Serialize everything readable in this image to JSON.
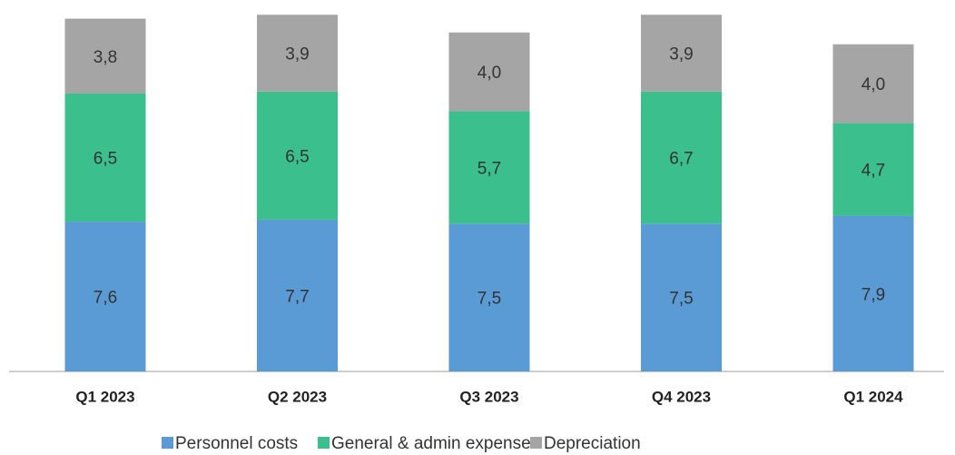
{
  "chart_data": {
    "type": "stacked_bar",
    "categories": [
      "Q1 2023",
      "Q2 2023",
      "Q3 2023",
      "Q4 2023",
      "Q1 2024"
    ],
    "series": [
      {
        "name": "Personnel costs",
        "color": "#5b9bd5",
        "values": [
          7.6,
          7.7,
          7.5,
          7.5,
          7.9
        ],
        "value_labels": [
          "7,6",
          "7,7",
          "7,5",
          "7,5",
          "7,9"
        ]
      },
      {
        "name": "General & admin expenses",
        "color": "#3bbf8c",
        "values": [
          6.5,
          6.5,
          5.7,
          6.7,
          4.7
        ],
        "value_labels": [
          "6,5",
          "6,5",
          "5,7",
          "6,7",
          "4,7"
        ]
      },
      {
        "name": "Depreciation",
        "color": "#a5a5a5",
        "values": [
          3.8,
          3.9,
          4.0,
          3.9,
          4.0
        ],
        "value_labels": [
          "3,8",
          "3,9",
          "4,0",
          "3,9",
          "4,0"
        ]
      }
    ],
    "legend": "bottom"
  }
}
